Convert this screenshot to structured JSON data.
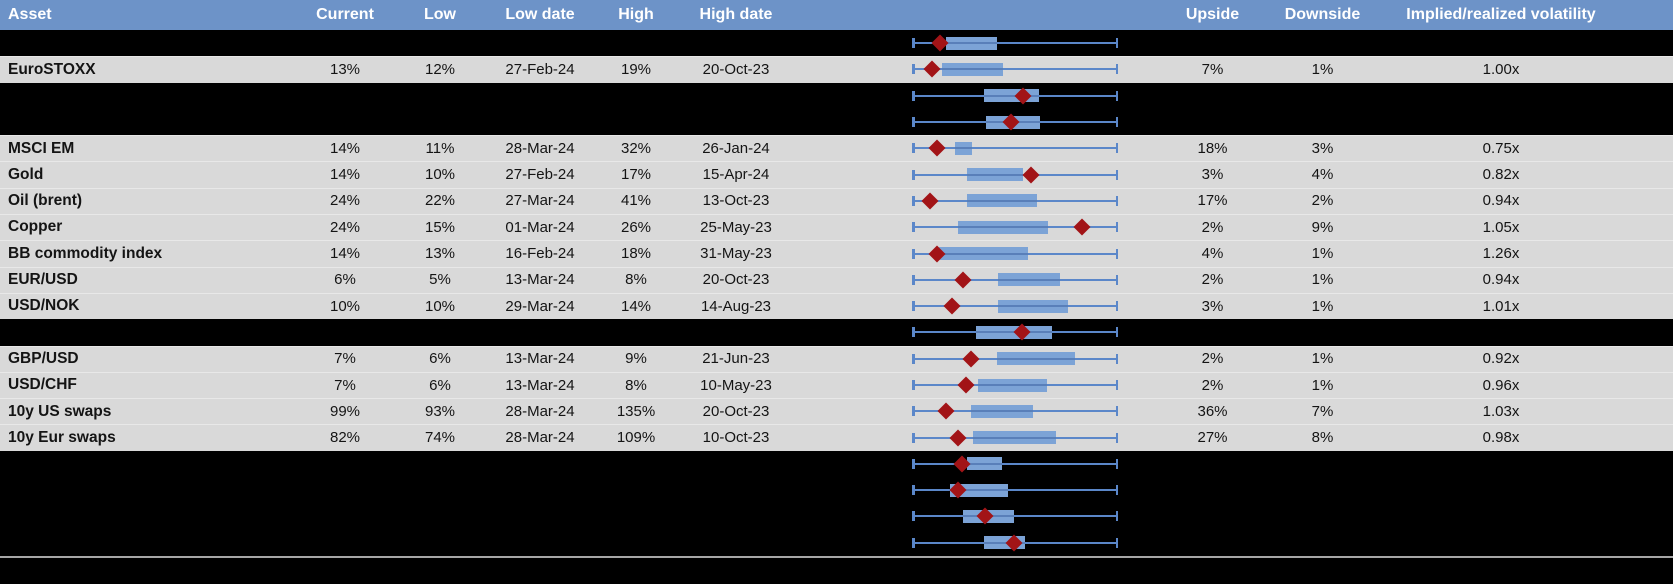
{
  "colors": {
    "header_bg": "#6D93C8",
    "header_text": "#FFFFFF",
    "row_bg": "#D9D9D9",
    "hidden_row_bg": "#000000",
    "body_text": "#141414",
    "box_fill": "#7CA3D6",
    "whisker": "#5B87C9",
    "marker": "#A21417",
    "separator_line": "#A6A6A6"
  },
  "header": {
    "asset": "Asset",
    "current": "Current",
    "low": "Low",
    "low_date": "Low date",
    "high": "High",
    "high_date": "High date",
    "chart": "",
    "upside": "Upside",
    "downside": "Downside",
    "implied": "Implied/realized volatility",
    "filler": ""
  },
  "chart_data": {
    "type": "table",
    "title": "Implied volatility monitor with per-row range box plots",
    "embedded_chart": "horizontal box-and-whisker per row; whiskers span the low-to-high range, blue box marks the middle range, dark-red diamond marks the current level (positions stored as fractions 0-1 of the whisker span)",
    "columns": [
      "Asset",
      "Current",
      "Low",
      "Low date",
      "High",
      "High date",
      "Range plot",
      "Upside",
      "Downside",
      "Implied/realized volatility"
    ],
    "rows": [
      {
        "hidden": true,
        "asset": "",
        "current": "",
        "low": "",
        "low_date": "",
        "high": "",
        "high_date": "",
        "upside": "",
        "downside": "",
        "implied": "",
        "boxplot": {
          "whisker": [
            0,
            1
          ],
          "box": [
            0.166,
            0.412
          ],
          "marker": 0.137
        }
      },
      {
        "hidden": false,
        "asset": "EuroSTOXX",
        "current": "13%",
        "low": "12%",
        "low_date": "27-Feb-24",
        "high": "19%",
        "high_date": "20-Oct-23",
        "upside": "7%",
        "downside": "1%",
        "implied": "1.00x",
        "boxplot": {
          "whisker": [
            0,
            1
          ],
          "box": [
            0.145,
            0.444
          ],
          "marker": 0.097
        }
      },
      {
        "hidden": true,
        "asset": "",
        "current": "",
        "low": "",
        "low_date": "",
        "high": "",
        "high_date": "",
        "upside": "",
        "downside": "",
        "implied": "",
        "boxplot": {
          "whisker": [
            0,
            1
          ],
          "box": [
            0.347,
            0.618
          ],
          "marker": 0.539
        }
      },
      {
        "hidden": true,
        "asset": "",
        "current": "",
        "low": "",
        "low_date": "",
        "high": "",
        "high_date": "",
        "upside": "",
        "downside": "",
        "implied": "",
        "boxplot": {
          "whisker": [
            0,
            1
          ],
          "box": [
            0.36,
            0.623
          ],
          "marker": 0.482
        }
      },
      {
        "hidden": false,
        "asset": "MSCI EM",
        "current": "14%",
        "low": "11%",
        "low_date": "28-Mar-24",
        "high": "32%",
        "high_date": "26-Jan-24",
        "upside": "18%",
        "downside": "3%",
        "implied": "0.75x",
        "boxplot": {
          "whisker": [
            0,
            1
          ],
          "box": [
            0.209,
            0.293
          ],
          "marker": 0.123
        }
      },
      {
        "hidden": false,
        "asset": "Gold",
        "current": "14%",
        "low": "10%",
        "low_date": "27-Feb-24",
        "high": "17%",
        "high_date": "15-Apr-24",
        "upside": "3%",
        "downside": "4%",
        "implied": "0.82x",
        "boxplot": {
          "whisker": [
            0,
            1
          ],
          "box": [
            0.266,
            0.538
          ],
          "marker": 0.577
        }
      },
      {
        "hidden": false,
        "asset": "Oil (brent)",
        "current": "24%",
        "low": "22%",
        "low_date": "27-Mar-24",
        "high": "41%",
        "high_date": "13-Oct-23",
        "upside": "17%",
        "downside": "2%",
        "implied": "0.94x",
        "boxplot": {
          "whisker": [
            0,
            1
          ],
          "box": [
            0.269,
            0.606
          ],
          "marker": 0.088
        }
      },
      {
        "hidden": false,
        "asset": "Copper",
        "current": "24%",
        "low": "15%",
        "low_date": "01-Mar-24",
        "high": "26%",
        "high_date": "25-May-23",
        "upside": "2%",
        "downside": "9%",
        "implied": "1.05x",
        "boxplot": {
          "whisker": [
            0,
            1
          ],
          "box": [
            0.225,
            0.66
          ],
          "marker": 0.825
        }
      },
      {
        "hidden": false,
        "asset": "BB commodity index",
        "current": "14%",
        "low": "13%",
        "low_date": "16-Feb-24",
        "high": "18%",
        "high_date": "31-May-23",
        "upside": "4%",
        "downside": "1%",
        "implied": "1.26x",
        "boxplot": {
          "whisker": [
            0,
            1
          ],
          "box": [
            0.133,
            0.561
          ],
          "marker": 0.123
        }
      },
      {
        "hidden": false,
        "asset": "EUR/USD",
        "current": "6%",
        "low": "5%",
        "low_date": "13-Mar-24",
        "high": "8%",
        "high_date": "20-Oct-23",
        "upside": "2%",
        "downside": "1%",
        "implied": "0.94x",
        "boxplot": {
          "whisker": [
            0,
            1
          ],
          "box": [
            0.417,
            0.717
          ],
          "marker": 0.245
        }
      },
      {
        "hidden": false,
        "asset": "USD/NOK",
        "current": "10%",
        "low": "10%",
        "low_date": "29-Mar-24",
        "high": "14%",
        "high_date": "14-Aug-23",
        "upside": "3%",
        "downside": "1%",
        "implied": "1.01x",
        "boxplot": {
          "whisker": [
            0,
            1
          ],
          "box": [
            0.417,
            0.757
          ],
          "marker": 0.193
        }
      },
      {
        "hidden": true,
        "asset": "",
        "current": "",
        "low": "",
        "low_date": "",
        "high": "",
        "high_date": "",
        "upside": "",
        "downside": "",
        "implied": "",
        "boxplot": {
          "whisker": [
            0,
            1
          ],
          "box": [
            0.311,
            0.682
          ],
          "marker": 0.533
        }
      },
      {
        "hidden": false,
        "asset": "GBP/USD",
        "current": "7%",
        "low": "6%",
        "low_date": "13-Mar-24",
        "high": "9%",
        "high_date": "21-Jun-23",
        "upside": "2%",
        "downside": "1%",
        "implied": "0.92x",
        "boxplot": {
          "whisker": [
            0,
            1
          ],
          "box": [
            0.412,
            0.789
          ],
          "marker": 0.285
        }
      },
      {
        "hidden": false,
        "asset": "USD/CHF",
        "current": "7%",
        "low": "6%",
        "low_date": "13-Mar-24",
        "high": "8%",
        "high_date": "10-May-23",
        "upside": "2%",
        "downside": "1%",
        "implied": "0.96x",
        "boxplot": {
          "whisker": [
            0,
            1
          ],
          "box": [
            0.318,
            0.655
          ],
          "marker": 0.263
        }
      },
      {
        "hidden": false,
        "asset": "10y US swaps",
        "current": "99%",
        "low": "93%",
        "low_date": "28-Mar-24",
        "high": "135%",
        "high_date": "20-Oct-23",
        "upside": "36%",
        "downside": "7%",
        "implied": "1.03x",
        "boxplot": {
          "whisker": [
            0,
            1
          ],
          "box": [
            0.287,
            0.587
          ],
          "marker": 0.164
        }
      },
      {
        "hidden": false,
        "asset": "10y Eur swaps",
        "current": "82%",
        "low": "74%",
        "low_date": "28-Mar-24",
        "high": "109%",
        "high_date": "10-Oct-23",
        "upside": "27%",
        "downside": "8%",
        "implied": "0.98x",
        "boxplot": {
          "whisker": [
            0,
            1
          ],
          "box": [
            0.295,
            0.7
          ],
          "marker": 0.225
        }
      },
      {
        "hidden": true,
        "asset": "",
        "current": "",
        "low": "",
        "low_date": "",
        "high": "",
        "high_date": "",
        "upside": "",
        "downside": "",
        "implied": "",
        "boxplot": {
          "whisker": [
            0,
            1
          ],
          "box": [
            0.266,
            0.436
          ],
          "marker": 0.242
        }
      },
      {
        "hidden": true,
        "asset": "",
        "current": "",
        "low": "",
        "low_date": "",
        "high": "",
        "high_date": "",
        "upside": "",
        "downside": "",
        "implied": "",
        "boxplot": {
          "whisker": [
            0,
            1
          ],
          "box": [
            0.185,
            0.464
          ],
          "marker": 0.225
        }
      },
      {
        "hidden": true,
        "asset": "",
        "current": "",
        "low": "",
        "low_date": "",
        "high": "",
        "high_date": "",
        "upside": "",
        "downside": "",
        "implied": "",
        "boxplot": {
          "whisker": [
            0,
            1
          ],
          "box": [
            0.247,
            0.496
          ],
          "marker": 0.352
        }
      },
      {
        "hidden": true,
        "asset": "",
        "current": "",
        "low": "",
        "low_date": "",
        "high": "",
        "high_date": "",
        "upside": "",
        "downside": "",
        "implied": "",
        "boxplot": {
          "whisker": [
            0,
            1
          ],
          "box": [
            0.347,
            0.55
          ],
          "marker": 0.493
        }
      }
    ]
  }
}
